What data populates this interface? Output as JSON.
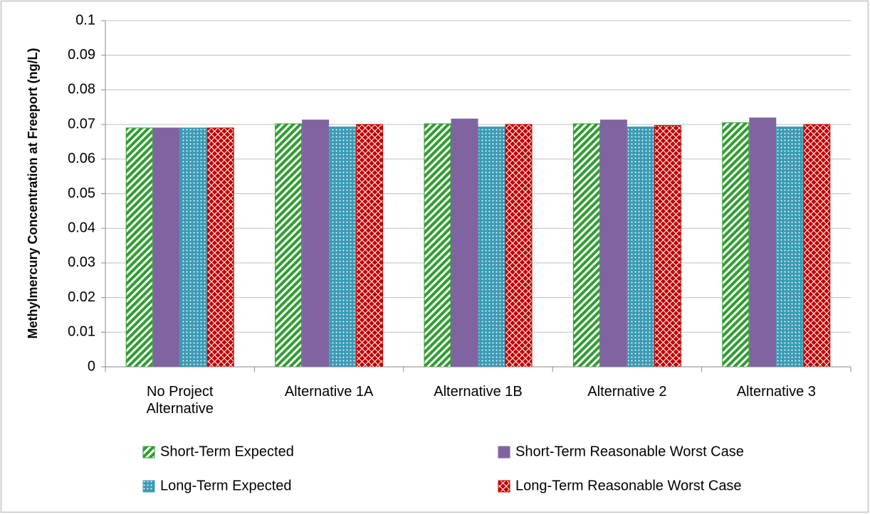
{
  "chart_data": {
    "type": "bar",
    "y_label": "Methylmercury Concentration at Freeport (ng/L)",
    "categories": [
      "No Project Alternative",
      "Alternative 1A",
      "Alternative 1B",
      "Alternative 2",
      "Alternative 3"
    ],
    "series": [
      {
        "name": "Short-Term Expected",
        "color": "#2e9e2e",
        "values": [
          0.069,
          0.0702,
          0.0702,
          0.0702,
          0.0705
        ]
      },
      {
        "name": "Short-Term Reasonable Worst Case",
        "color": "#8064a2",
        "values": [
          0.069,
          0.0713,
          0.0716,
          0.0713,
          0.0719
        ]
      },
      {
        "name": "Long-Term Expected",
        "color": "#3a9bb5",
        "values": [
          0.069,
          0.0693,
          0.0693,
          0.0693,
          0.0693
        ]
      },
      {
        "name": "Long-Term Reasonable Worst Case",
        "color": "#c00000",
        "values": [
          0.069,
          0.07,
          0.07,
          0.0697,
          0.07
        ]
      }
    ],
    "ylim": [
      0,
      0.1
    ],
    "yticks": [
      0,
      0.01,
      0.02,
      0.03,
      0.04,
      0.05,
      0.06,
      0.07,
      0.08,
      0.09,
      0.1
    ],
    "grid": true
  }
}
